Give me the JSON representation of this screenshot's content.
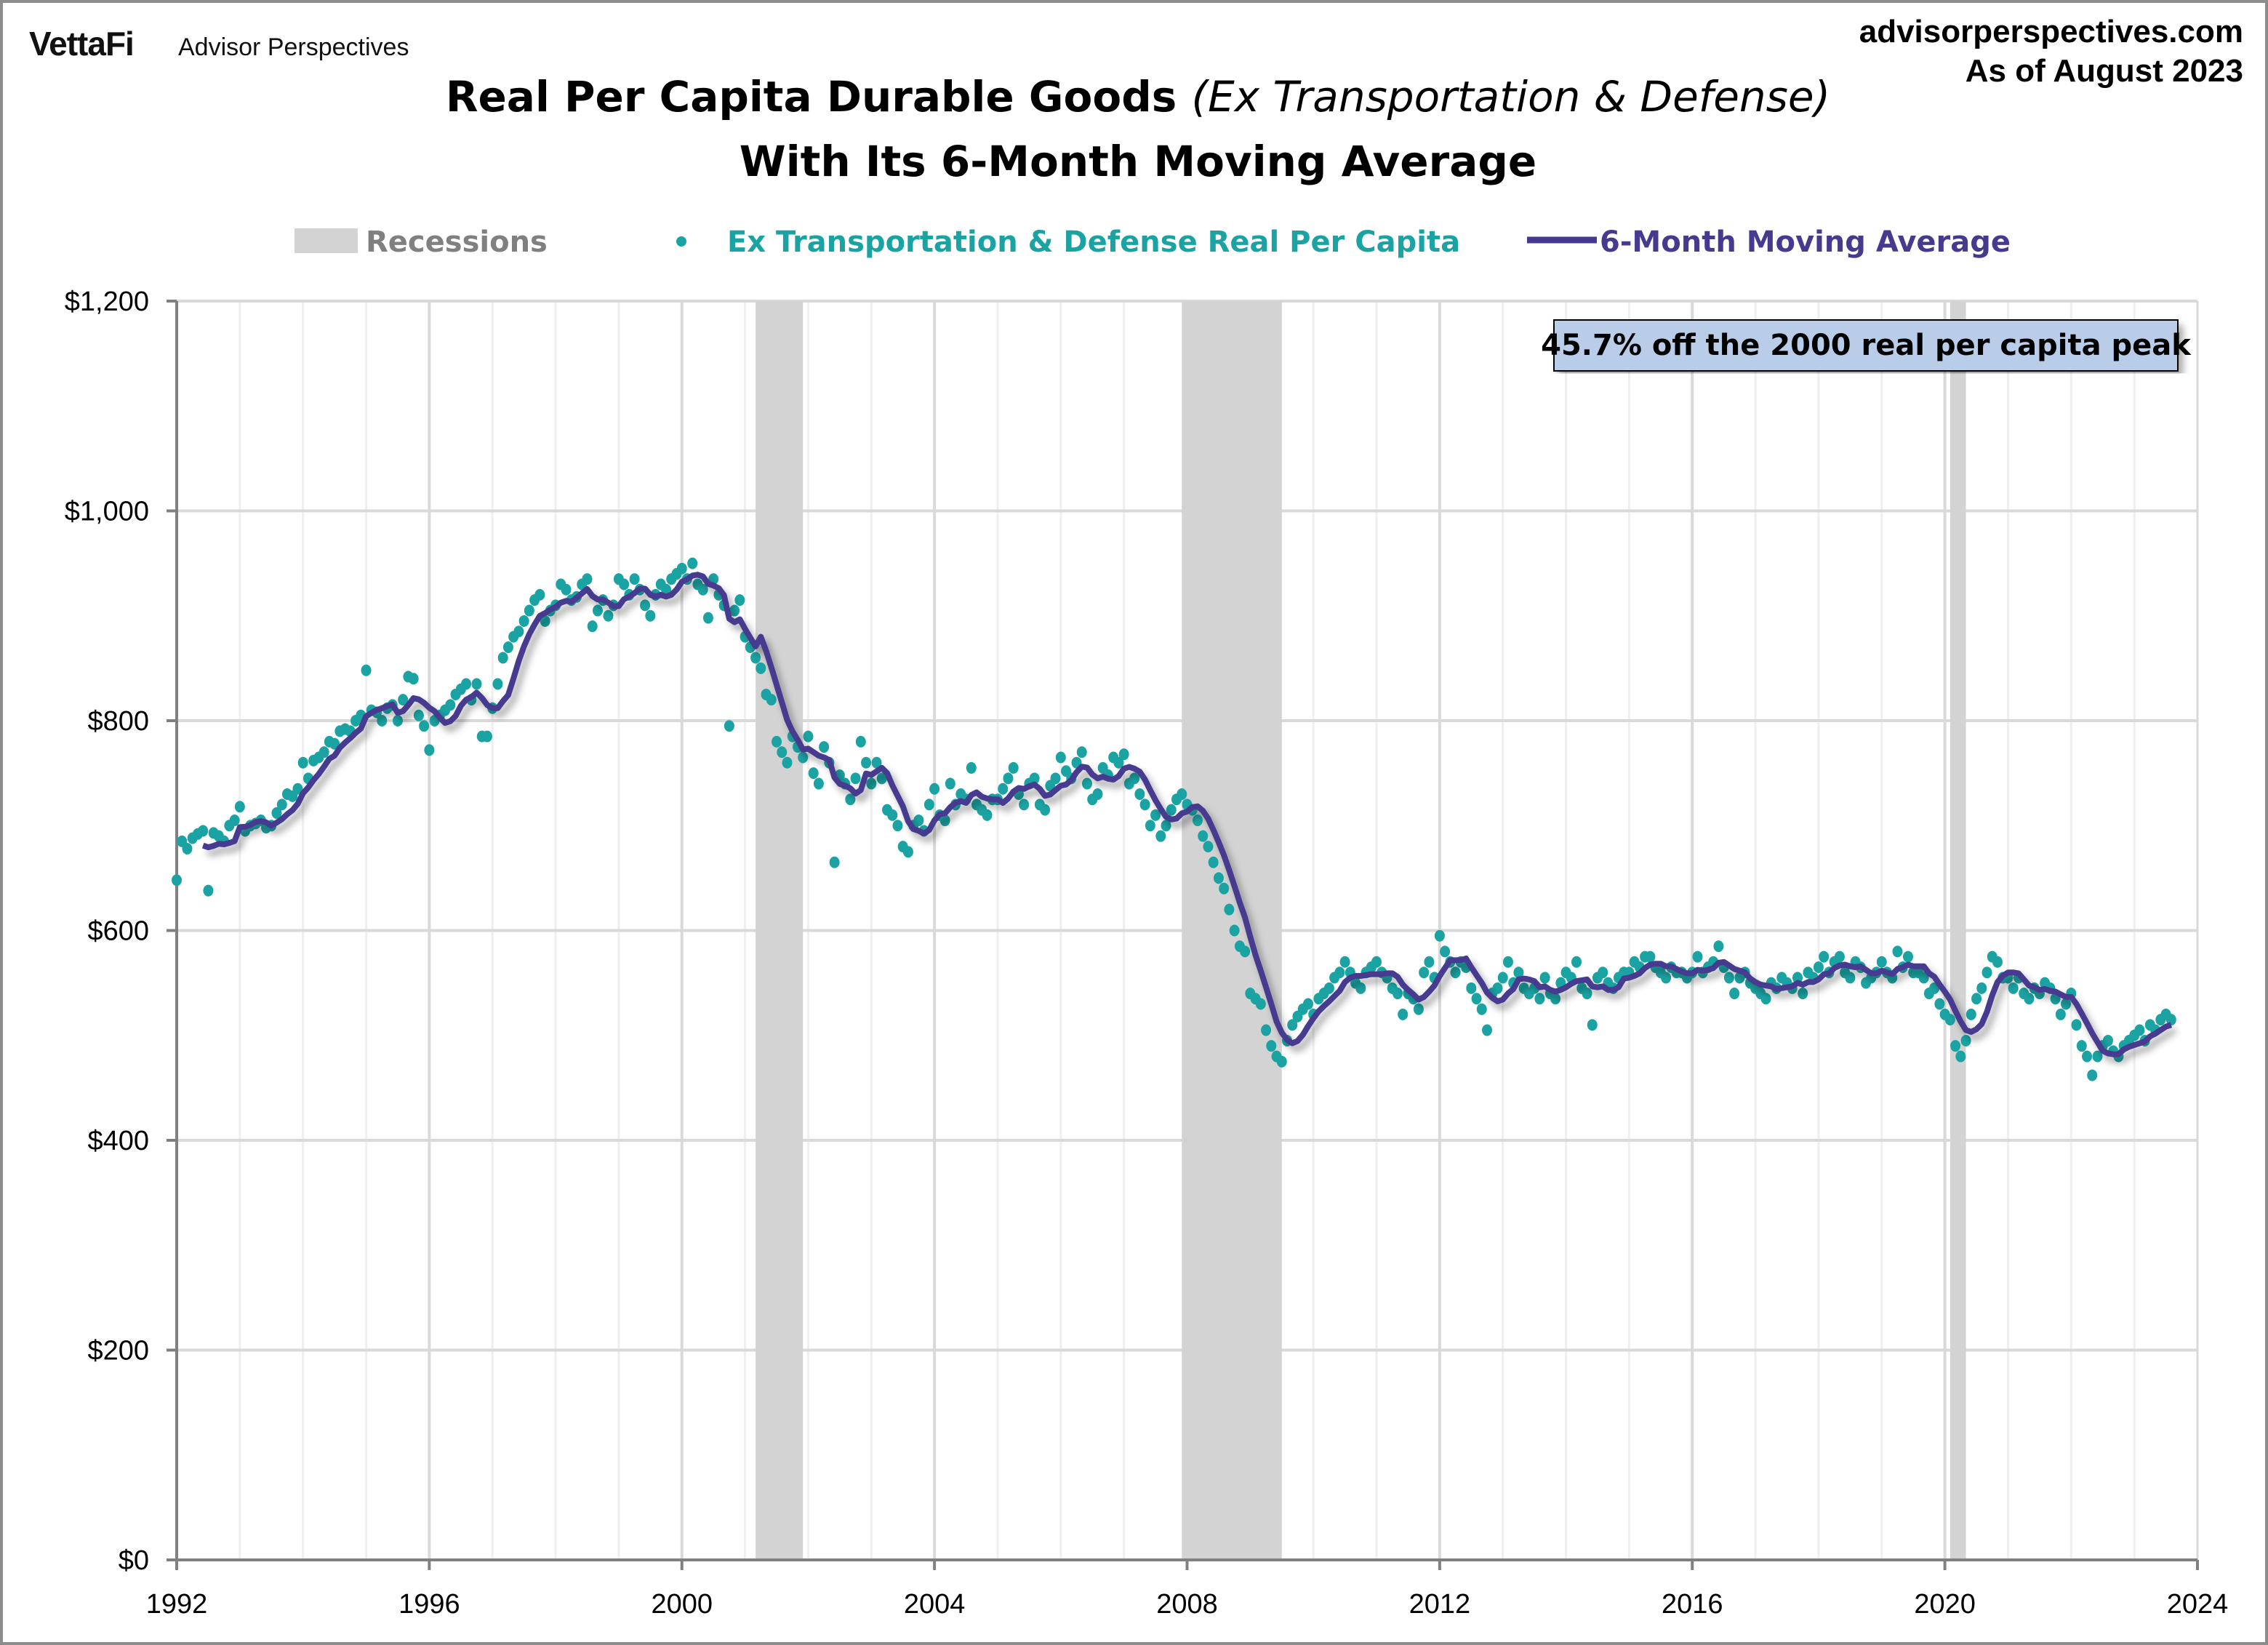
{
  "branding": {
    "logo": "VettaFi",
    "subbrand": "Advisor Perspectives"
  },
  "source": {
    "site": "advisorperspectives.com",
    "as_of": "As of August 2023"
  },
  "colors": {
    "dots": "#1ba3a3",
    "line": "#463a8f",
    "recession": "#d3d3d3",
    "annotation_fill": "#b9cde9"
  },
  "chart_data": {
    "type": "scatter",
    "title_bold": "Real Per Capita Durable Goods ",
    "title_italic": "(Ex Transportation & Defense)",
    "subtitle": "With Its 6-Month Moving Average",
    "legend": {
      "placement": "top",
      "recessions": "Recessions",
      "dots": "Ex Transportation & Defense Real Per Capita",
      "line": "6-Month Moving Average"
    },
    "annotation": "45.7% off the 2000 real per capita peak",
    "xlim": [
      1992,
      2024
    ],
    "ylim": [
      0,
      1200
    ],
    "x_ticks": [
      "1992",
      "1996",
      "2000",
      "2004",
      "2008",
      "2012",
      "2016",
      "2020",
      "2024"
    ],
    "y_ticks": [
      "$0",
      "$200",
      "$400",
      "$600",
      "$800",
      "$1,000",
      "$1,200"
    ],
    "y_tick_values": [
      0,
      200,
      400,
      600,
      800,
      1000,
      1200
    ],
    "grid": true,
    "recessions": [
      [
        "2001-03",
        "2001-11"
      ],
      [
        "2007-12",
        "2009-06"
      ],
      [
        "2020-02",
        "2020-04"
      ]
    ],
    "series": [
      {
        "name": "Ex Transportation & Defense Real Per Capita",
        "kind": "scatter",
        "start": "1992-01",
        "frequency": "monthly",
        "values": [
          648,
          685,
          678,
          688,
          692,
          695,
          638,
          693,
          690,
          685,
          700,
          705,
          718,
          695,
          700,
          702,
          705,
          698,
          700,
          712,
          720,
          730,
          728,
          735,
          760,
          745,
          762,
          765,
          770,
          780,
          778,
          790,
          792,
          790,
          800,
          805,
          848,
          810,
          808,
          800,
          812,
          815,
          800,
          820,
          842,
          840,
          805,
          795,
          772,
          800,
          805,
          810,
          815,
          825,
          830,
          835,
          820,
          835,
          785,
          785,
          812,
          835,
          860,
          870,
          880,
          885,
          895,
          905,
          915,
          920,
          895,
          905,
          910,
          930,
          925,
          915,
          918,
          930,
          935,
          890,
          905,
          915,
          900,
          910,
          935,
          930,
          920,
          935,
          925,
          910,
          900,
          920,
          930,
          925,
          935,
          940,
          945,
          935,
          950,
          930,
          925,
          898,
          935,
          920,
          910,
          795,
          905,
          915,
          880,
          870,
          860,
          850,
          825,
          820,
          780,
          770,
          760,
          785,
          775,
          765,
          785,
          750,
          740,
          775,
          760,
          665,
          748,
          740,
          725,
          745,
          780,
          760,
          740,
          760,
          745,
          715,
          710,
          700,
          680,
          675,
          700,
          705,
          695,
          720,
          735,
          710,
          705,
          740,
          720,
          730,
          725,
          755,
          720,
          715,
          710,
          725,
          725,
          735,
          745,
          755,
          730,
          720,
          740,
          745,
          720,
          715,
          738,
          745,
          765,
          752,
          745,
          760,
          770,
          740,
          725,
          730,
          755,
          748,
          765,
          760,
          768,
          740,
          745,
          730,
          720,
          700,
          710,
          690,
          700,
          715,
          725,
          730,
          720,
          715,
          705,
          690,
          680,
          665,
          650,
          640,
          620,
          600,
          585,
          580,
          540,
          535,
          530,
          505,
          490,
          480,
          475,
          495,
          510,
          518,
          525,
          530,
          520,
          535,
          540,
          545,
          555,
          560,
          570,
          560,
          550,
          545,
          560,
          565,
          570,
          560,
          555,
          545,
          540,
          520,
          540,
          535,
          525,
          560,
          570,
          555,
          595,
          580,
          570,
          560,
          570,
          565,
          545,
          535,
          525,
          505,
          540,
          545,
          555,
          570,
          550,
          560,
          545,
          540,
          545,
          535,
          555,
          540,
          535,
          550,
          560,
          555,
          570,
          545,
          540,
          510,
          555,
          560,
          550,
          545,
          555,
          560,
          560,
          570,
          565,
          575,
          575,
          565,
          560,
          555,
          565,
          560,
          560,
          555,
          560,
          575,
          560,
          565,
          570,
          585,
          565,
          555,
          540,
          555,
          560,
          550,
          545,
          540,
          535,
          550,
          545,
          555,
          550,
          545,
          555,
          540,
          560,
          555,
          565,
          575,
          560,
          570,
          575,
          560,
          555,
          570,
          565,
          550,
          555,
          560,
          570,
          560,
          555,
          580,
          565,
          575,
          560,
          560,
          555,
          540,
          545,
          530,
          520,
          515,
          490,
          480,
          495,
          520,
          535,
          545,
          560,
          575,
          570,
          555,
          555,
          545,
          555,
          540,
          535,
          545,
          540,
          550,
          545,
          535,
          520,
          530,
          540,
          510,
          490,
          480,
          462,
          480,
          490,
          495,
          485,
          480,
          490,
          495,
          500,
          505,
          495,
          510,
          505,
          515,
          520,
          515
        ]
      },
      {
        "name": "6-Month Moving Average",
        "kind": "line",
        "window_months": 6
      }
    ]
  }
}
